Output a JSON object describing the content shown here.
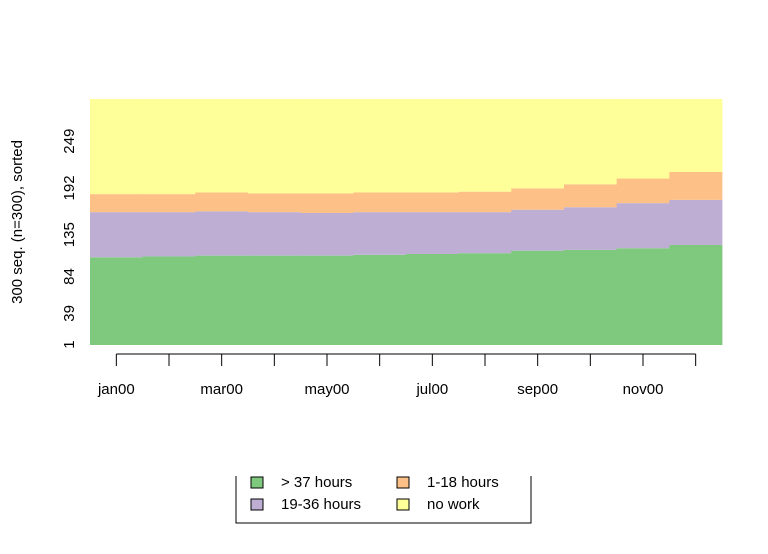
{
  "chart_data": {
    "type": "sequence-index",
    "ylabel": "300 seq. (n=300), sorted",
    "categories": [
      "jan00",
      null,
      "mar00",
      null,
      "may00",
      null,
      "jul00",
      null,
      "sep00",
      null,
      "nov00",
      null
    ],
    "ylim": [
      0.5,
      300.5
    ],
    "yticks": [
      1,
      39,
      84,
      135,
      192,
      249
    ],
    "series": [
      {
        "name": "> 37 hours",
        "color": "#7fc97f",
        "values": [
          107,
          108,
          109,
          109,
          109,
          110,
          111,
          112,
          115,
          116,
          118,
          122
        ]
      },
      {
        "name": "19-36 hours",
        "color": "#beaed4",
        "values": [
          55,
          54,
          54,
          53,
          52,
          52,
          51,
          50,
          50,
          52,
          55,
          55
        ]
      },
      {
        "name": "1-18 hours",
        "color": "#fdc086",
        "values": [
          22,
          22,
          23,
          23,
          24,
          24,
          24,
          25,
          26,
          28,
          30,
          34
        ]
      },
      {
        "name": "no work",
        "color": "#ffff99",
        "values": [
          116,
          116,
          114,
          115,
          115,
          114,
          114,
          113,
          109,
          104,
          97,
          89
        ]
      }
    ]
  }
}
